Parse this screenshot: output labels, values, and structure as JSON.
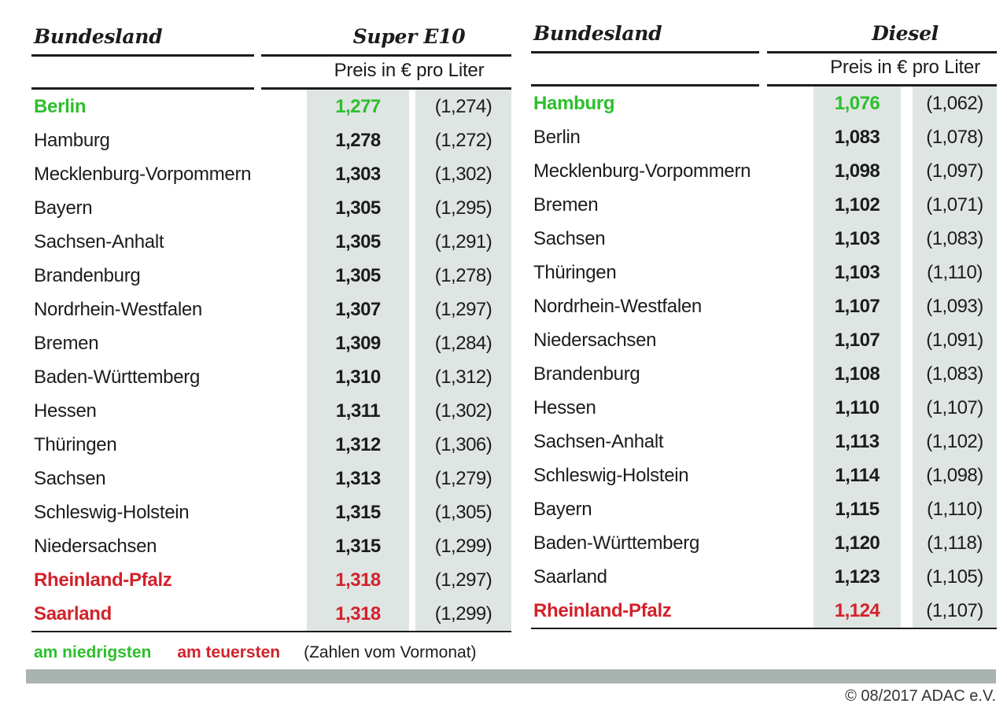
{
  "chart_data": [
    {
      "type": "table",
      "state_header": "Bundesland",
      "fuel": "Super E10",
      "unit_header": "Preis in € pro Liter",
      "rows": [
        {
          "state": "Berlin",
          "price": "1,277",
          "prev": "(1,274)",
          "mark": "lowest"
        },
        {
          "state": "Hamburg",
          "price": "1,278",
          "prev": "(1,272)"
        },
        {
          "state": "Mecklenburg-Vorpommern",
          "price": "1,303",
          "prev": "(1,302)"
        },
        {
          "state": "Bayern",
          "price": "1,305",
          "prev": "(1,295)"
        },
        {
          "state": "Sachsen-Anhalt",
          "price": "1,305",
          "prev": "(1,291)"
        },
        {
          "state": "Brandenburg",
          "price": "1,305",
          "prev": "(1,278)"
        },
        {
          "state": "Nordrhein-Westfalen",
          "price": "1,307",
          "prev": "(1,297)"
        },
        {
          "state": "Bremen",
          "price": "1,309",
          "prev": "(1,284)"
        },
        {
          "state": "Baden-Württemberg",
          "price": "1,310",
          "prev": "(1,312)"
        },
        {
          "state": "Hessen",
          "price": "1,311",
          "prev": "(1,302)"
        },
        {
          "state": "Thüringen",
          "price": "1,312",
          "prev": "(1,306)"
        },
        {
          "state": "Sachsen",
          "price": "1,313",
          "prev": "(1,279)"
        },
        {
          "state": "Schleswig-Holstein",
          "price": "1,315",
          "prev": "(1,305)"
        },
        {
          "state": "Niedersachsen",
          "price": "1,315",
          "prev": "(1,299)"
        },
        {
          "state": "Rheinland-Pfalz",
          "price": "1,318",
          "prev": "(1,297)",
          "mark": "highest"
        },
        {
          "state": "Saarland",
          "price": "1,318",
          "prev": "(1,299)",
          "mark": "highest"
        }
      ]
    },
    {
      "type": "table",
      "state_header": "Bundesland",
      "fuel": "Diesel",
      "unit_header": "Preis in € pro Liter",
      "rows": [
        {
          "state": "Hamburg",
          "price": "1,076",
          "prev": "(1,062)",
          "mark": "lowest"
        },
        {
          "state": "Berlin",
          "price": "1,083",
          "prev": "(1,078)"
        },
        {
          "state": "Mecklenburg-Vorpommern",
          "price": "1,098",
          "prev": "(1,097)"
        },
        {
          "state": "Bremen",
          "price": "1,102",
          "prev": "(1,071)"
        },
        {
          "state": "Sachsen",
          "price": "1,103",
          "prev": "(1,083)"
        },
        {
          "state": "Thüringen",
          "price": "1,103",
          "prev": "(1,110)"
        },
        {
          "state": "Nordrhein-Westfalen",
          "price": "1,107",
          "prev": "(1,093)"
        },
        {
          "state": "Niedersachsen",
          "price": "1,107",
          "prev": "(1,091)"
        },
        {
          "state": "Brandenburg",
          "price": "1,108",
          "prev": "(1,083)"
        },
        {
          "state": "Hessen",
          "price": "1,110",
          "prev": "(1,107)"
        },
        {
          "state": "Sachsen-Anhalt",
          "price": "1,113",
          "prev": "(1,102)"
        },
        {
          "state": "Schleswig-Holstein",
          "price": "1,114",
          "prev": "(1,098)"
        },
        {
          "state": "Bayern",
          "price": "1,115",
          "prev": "(1,110)"
        },
        {
          "state": "Baden-Württemberg",
          "price": "1,120",
          "prev": "(1,118)"
        },
        {
          "state": "Saarland",
          "price": "1,123",
          "prev": "(1,105)"
        },
        {
          "state": "Rheinland-Pfalz",
          "price": "1,124",
          "prev": "(1,107)",
          "mark": "highest"
        }
      ]
    }
  ],
  "legend": {
    "lowest": "am niedrigsten",
    "highest": "am teuersten",
    "note": "(Zahlen vom Vormonat)"
  },
  "footer": {
    "copyright": "© 08/2017 ADAC e.V."
  },
  "colors": {
    "lowest_green": "#2cbf2c",
    "highest_red": "#d2222b",
    "cell_background": "#dfe5e3",
    "divider_bar": "#a9b4b0"
  }
}
